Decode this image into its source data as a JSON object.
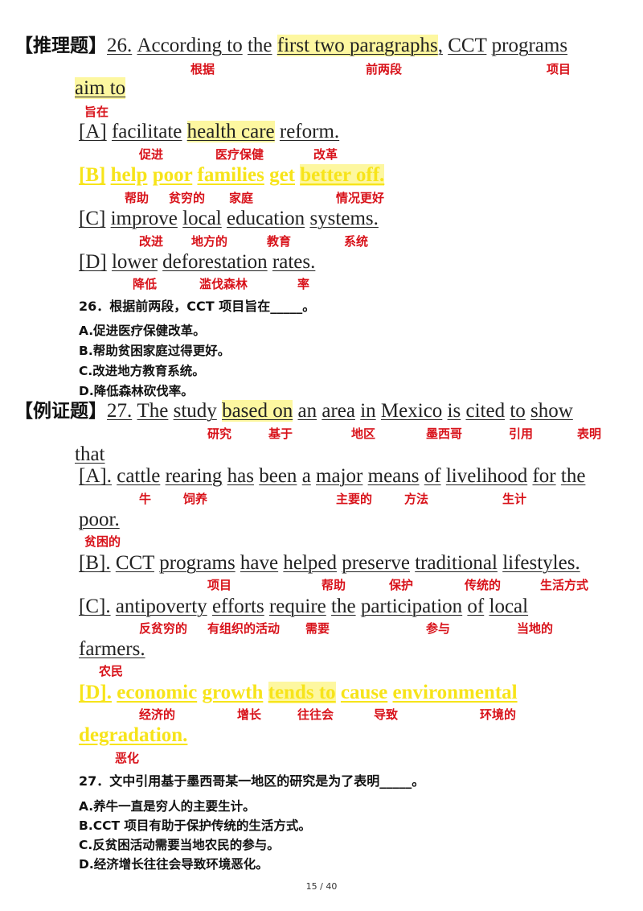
{
  "q26": {
    "tag": "【推理题】",
    "lines": [
      [
        {
          "t": "26."
        },
        {
          "t": "According to"
        },
        {
          "t": "the"
        },
        {
          "t": "first two paragraphs",
          "hl": true
        },
        {
          "t": ","
        },
        {
          "t": "CCT"
        },
        {
          "t": "programs"
        }
      ],
      [
        {
          "t": "aim to",
          "hl": true
        }
      ],
      [
        {
          "t": "[A]"
        },
        {
          "t": "facilitate"
        },
        {
          "t": "health care",
          "hl": true
        },
        {
          "t": "reform."
        }
      ],
      [
        {
          "t": "[B]"
        },
        {
          "t": "help"
        },
        {
          "t": "poor"
        },
        {
          "t": "families"
        },
        {
          "t": "get"
        },
        {
          "t": "better off.",
          "hl": true
        }
      ],
      [
        {
          "t": "[C]"
        },
        {
          "t": "improve"
        },
        {
          "t": "local"
        },
        {
          "t": "education"
        },
        {
          "t": "systems."
        }
      ],
      [
        {
          "t": "[D]"
        },
        {
          "t": "lower"
        },
        {
          "t": "deforestation"
        },
        {
          "t": "rates."
        }
      ]
    ],
    "correct_line": 3,
    "gloss": [
      "根据",
      "前两段",
      "项目",
      "旨在",
      "促进",
      "医疗保健",
      "改革",
      "帮助",
      "贫穷的",
      "家庭",
      "情况更好",
      "改进",
      "地方的",
      "教育",
      "系统",
      "降低",
      "滥伐森林",
      "率"
    ],
    "question": "26．根据前两段，CCT 项目旨在_____。",
    "options": [
      "A.促进医疗保健改革。",
      "B.帮助贫困家庭过得更好。",
      "C.改进地方教育系统。",
      "D.降低森林砍伐率。"
    ]
  },
  "q27": {
    "tag": "【例证题】",
    "lines": [
      [
        {
          "t": "27."
        },
        {
          "t": "The"
        },
        {
          "t": "study"
        },
        {
          "t": "based on",
          "hl": true
        },
        {
          "t": "an"
        },
        {
          "t": "area"
        },
        {
          "t": "in"
        },
        {
          "t": "Mexico"
        },
        {
          "t": "is"
        },
        {
          "t": "cited"
        },
        {
          "t": "to"
        },
        {
          "t": "show"
        }
      ],
      [
        {
          "t": "that"
        }
      ],
      [
        {
          "t": "[A]."
        },
        {
          "t": "cattle"
        },
        {
          "t": "rearing"
        },
        {
          "t": "has"
        },
        {
          "t": "been"
        },
        {
          "t": "a"
        },
        {
          "t": "major"
        },
        {
          "t": "means"
        },
        {
          "t": "of"
        },
        {
          "t": "livelihood"
        },
        {
          "t": "for"
        },
        {
          "t": "the"
        }
      ],
      [
        {
          "t": "poor."
        }
      ],
      [
        {
          "t": "[B]."
        },
        {
          "t": "CCT"
        },
        {
          "t": "programs"
        },
        {
          "t": "have"
        },
        {
          "t": "helped"
        },
        {
          "t": "preserve"
        },
        {
          "t": "traditional"
        },
        {
          "t": "lifestyles."
        }
      ],
      [
        {
          "t": "[C]."
        },
        {
          "t": "antipoverty"
        },
        {
          "t": "efforts"
        },
        {
          "t": "require"
        },
        {
          "t": "the"
        },
        {
          "t": "participation"
        },
        {
          "t": "of"
        },
        {
          "t": "local"
        }
      ],
      [
        {
          "t": "farmers."
        }
      ],
      [
        {
          "t": "[D]."
        },
        {
          "t": "economic"
        },
        {
          "t": "growth"
        },
        {
          "t": "tends to",
          "hl": true
        },
        {
          "t": "cause"
        },
        {
          "t": "environmental"
        }
      ],
      [
        {
          "t": "degradation."
        }
      ]
    ],
    "correct_lines": [
      7,
      8
    ],
    "gloss": [
      "研究",
      "基于",
      "地区",
      "墨西哥",
      "引用",
      "表明",
      "牛",
      "饲养",
      "主要的",
      "方法",
      "生计",
      "贫困的",
      "项目",
      "帮助",
      "保护",
      "传统的",
      "生活方式",
      "反贫穷的",
      "有组织的活动",
      "需要",
      "参与",
      "当地的",
      "农民",
      "经济的",
      "增长",
      "往往会",
      "导致",
      "环境的",
      "恶化"
    ],
    "question": "27．文中引用基于墨西哥某一地区的研究是为了表明_____。",
    "options": [
      "A.养牛一直是穷人的主要生计。",
      "B.CCT 项目有助于保护传统的生活方式。",
      "C.反贫困活动需要当地农民的参与。",
      "D.经济增长往往会导致环境恶化。"
    ]
  },
  "footer": {
    "page": "15 / 40"
  },
  "colors": {
    "gloss": "#d8121a",
    "answer": "#f7e41a",
    "highlight": "#fdf7a0"
  }
}
